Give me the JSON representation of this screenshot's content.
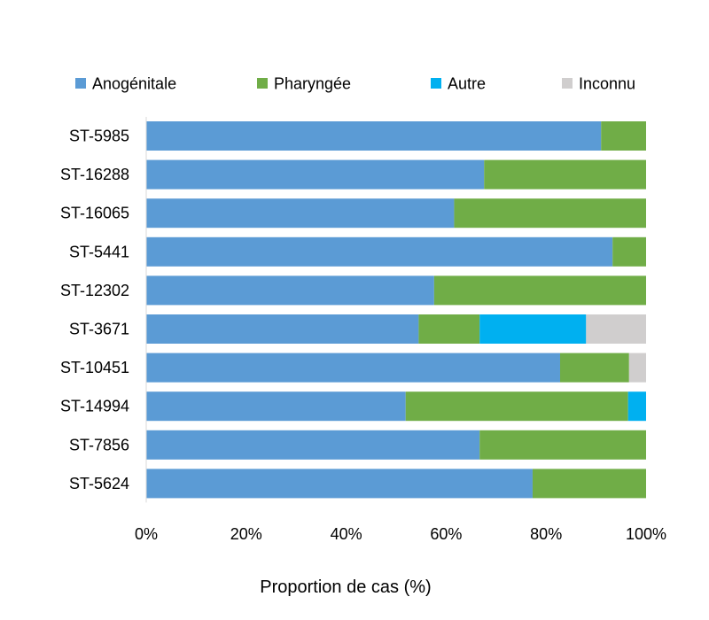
{
  "chart_data": {
    "type": "bar",
    "orientation": "horizontal",
    "stacked": "percent",
    "categories": [
      "ST-5985",
      "ST-16288",
      "ST-16065",
      "ST-5441",
      "ST-12302",
      "ST-3671",
      "ST-10451",
      "ST-14994",
      "ST-7856",
      "ST-5624"
    ],
    "series": [
      {
        "name": "Anogénitale",
        "color": "#5b9bd5",
        "values": [
          91,
          67.6,
          61.6,
          93.3,
          57.6,
          54.5,
          82.8,
          51.9,
          66.7,
          77.3
        ]
      },
      {
        "name": "Pharyngée",
        "color": "#70ad47",
        "values": [
          9,
          32.4,
          38.4,
          6.7,
          42.4,
          12.2,
          13.8,
          44.5,
          33.3,
          22.7
        ]
      },
      {
        "name": "Autre",
        "color": "#00b0f0",
        "values": [
          0,
          0,
          0,
          0,
          0,
          21.3,
          0,
          3.6,
          0,
          0
        ]
      },
      {
        "name": "Inconnu",
        "color": "#d0cece",
        "values": [
          0,
          0,
          0,
          0,
          0,
          12,
          3.4,
          0,
          0,
          0
        ]
      }
    ],
    "xticks": [
      "0%",
      "20%",
      "40%",
      "60%",
      "80%",
      "100%"
    ],
    "xlim": [
      0,
      100
    ],
    "xlabel": "Proportion de cas (%)",
    "ylabel": "",
    "title": "",
    "legend_position": "top",
    "grid": false
  }
}
